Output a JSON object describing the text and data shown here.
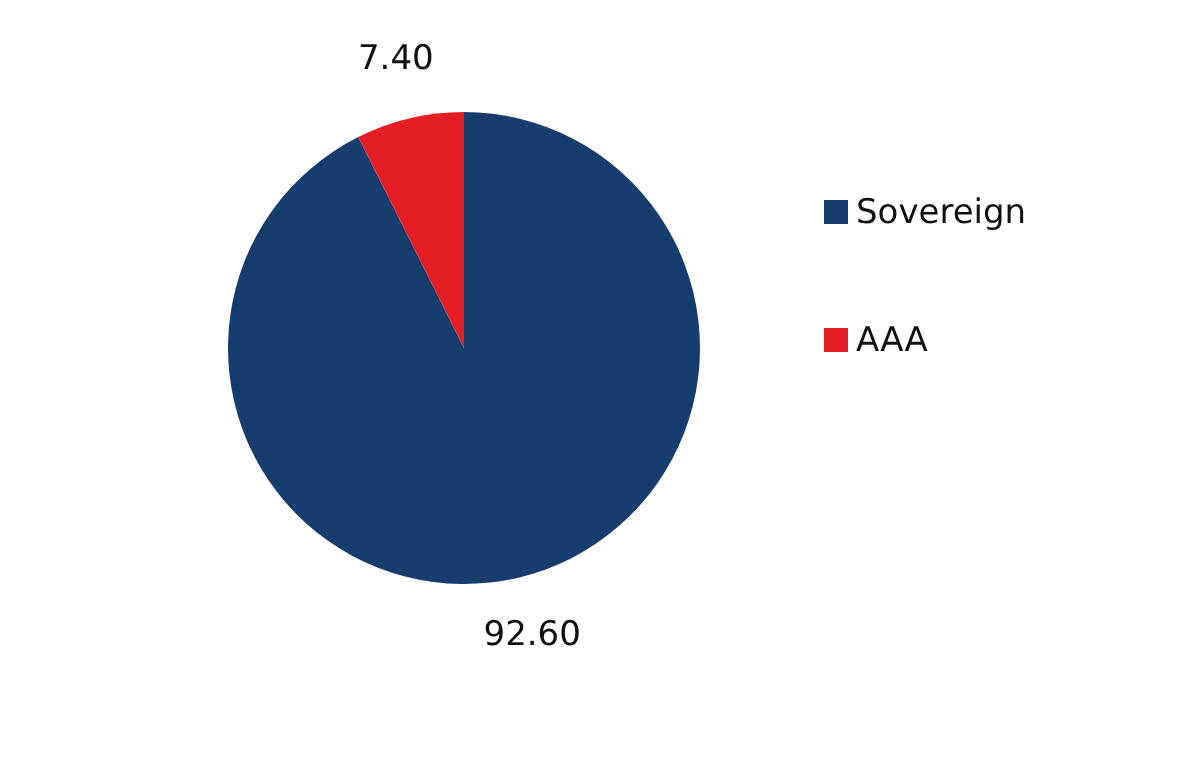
{
  "chart_data": {
    "type": "pie",
    "categories": [
      "Sovereign",
      "AAA"
    ],
    "values": [
      92.6,
      7.4
    ],
    "colors": [
      "#173c6e",
      "#e31e24"
    ],
    "value_labels": [
      "92.60",
      "7.40"
    ],
    "legend": "right"
  }
}
